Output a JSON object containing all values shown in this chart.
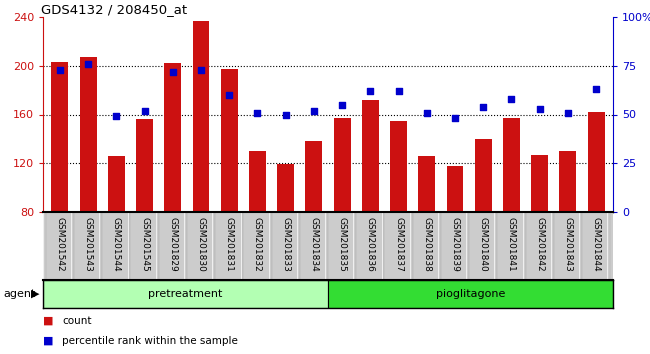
{
  "title": "GDS4132 / 208450_at",
  "samples": [
    "GSM201542",
    "GSM201543",
    "GSM201544",
    "GSM201545",
    "GSM201829",
    "GSM201830",
    "GSM201831",
    "GSM201832",
    "GSM201833",
    "GSM201834",
    "GSM201835",
    "GSM201836",
    "GSM201837",
    "GSM201838",
    "GSM201839",
    "GSM201840",
    "GSM201841",
    "GSM201842",
    "GSM201843",
    "GSM201844"
  ],
  "counts": [
    203,
    207,
    126,
    156,
    202,
    237,
    197,
    130,
    119,
    138,
    157,
    172,
    155,
    126,
    118,
    140,
    157,
    127,
    130,
    162
  ],
  "percentile_ranks": [
    73,
    76,
    49,
    52,
    72,
    73,
    60,
    51,
    50,
    52,
    55,
    62,
    62,
    51,
    48,
    54,
    58,
    53,
    51,
    63
  ],
  "bar_color": "#cc1111",
  "dot_color": "#0000cc",
  "ylim_left": [
    80,
    240
  ],
  "ylim_right": [
    0,
    100
  ],
  "yticks_left": [
    80,
    120,
    160,
    200,
    240
  ],
  "yticks_right": [
    0,
    25,
    50,
    75,
    100
  ],
  "yticklabels_right": [
    "0",
    "25",
    "50",
    "75",
    "100%"
  ],
  "bg_color": "#cccccc",
  "pretreatment_color": "#b3ffb3",
  "pioglitagone_color": "#33dd33",
  "pretreatment_label": "pretreatment",
  "pioglitagone_label": "pioglitagone",
  "agent_label": "agent",
  "legend_count_label": "count",
  "legend_pct_label": "percentile rank within the sample",
  "n_pretreatment": 10,
  "n_pioglitagone": 10
}
